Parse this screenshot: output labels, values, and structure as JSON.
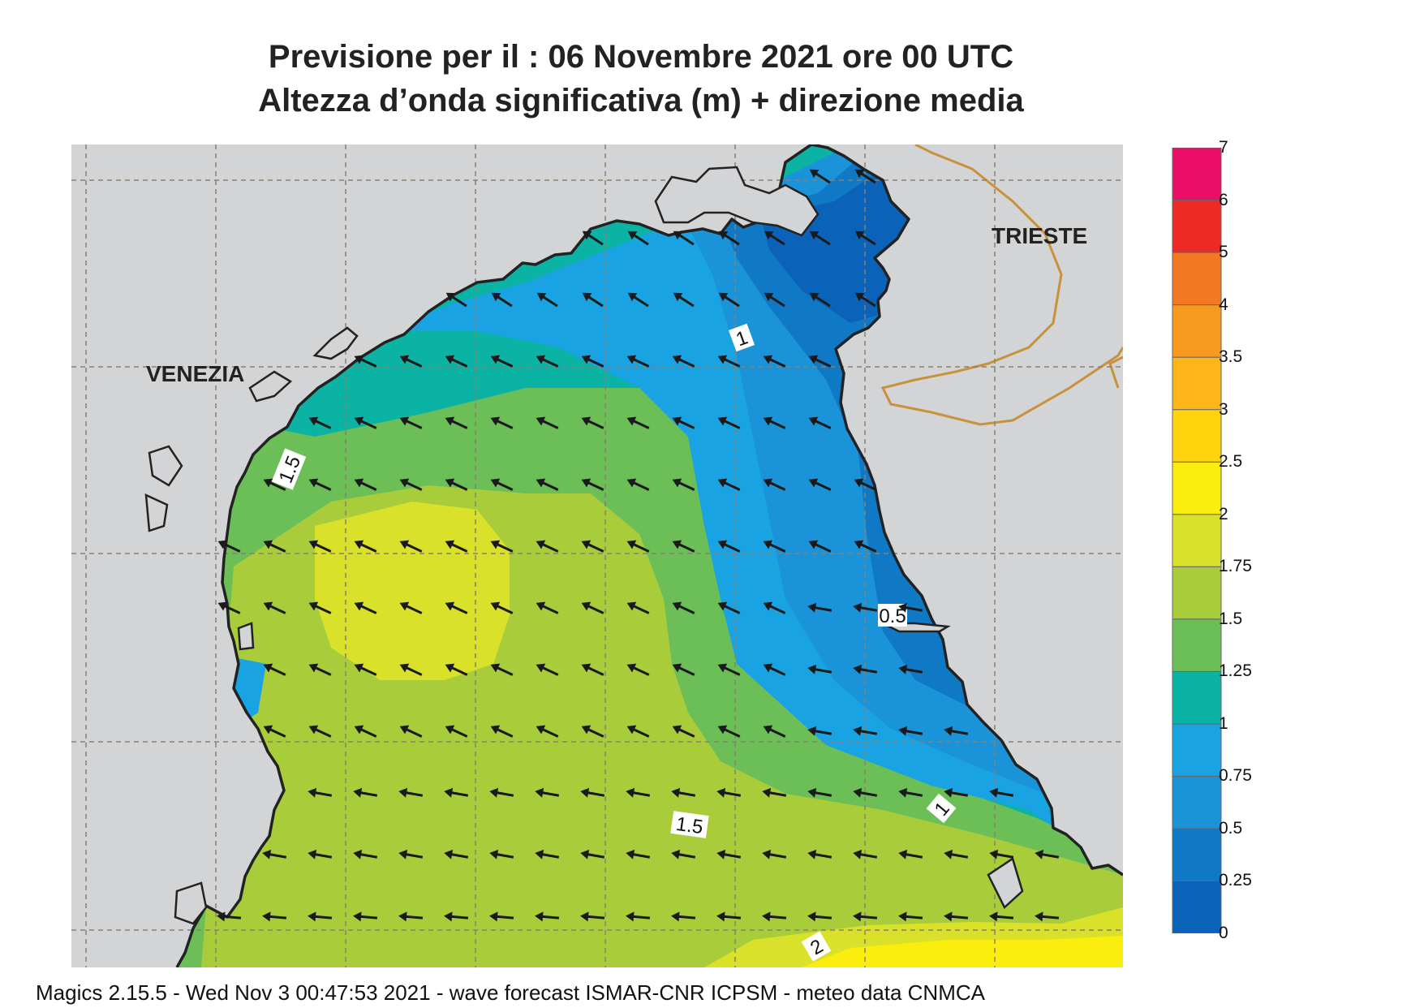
{
  "title": {
    "line1": "Previsione per il  :  06 Novembre  2021   ore 00 UTC",
    "line2": "Altezza d’onda significativa (m) + direzione media"
  },
  "cities": {
    "venezia": "VENEZIA",
    "trieste": "TRIESTE"
  },
  "contour_labels": {
    "c15_west": "1.5",
    "c1_north": "1",
    "c05_east": "0.5",
    "c1_south": "1",
    "c15_south": "1.5",
    "c2_south": "2"
  },
  "legend": {
    "ticks": [
      "0",
      "0.25",
      "0.5",
      "0.75",
      "1",
      "1.25",
      "1.5",
      "1.75",
      "2",
      "2.5",
      "3",
      "3.5",
      "4",
      "5",
      "6",
      "7"
    ],
    "colors": [
      "#0a63b8",
      "#1079c6",
      "#1a93d8",
      "#19a3e3",
      "#0bb3a5",
      "#6cbf57",
      "#a9cc3b",
      "#d9e12a",
      "#fbee0e",
      "#ffd40e",
      "#fdb619",
      "#f99a20",
      "#f27921",
      "#ee2a26",
      "#ea0e67"
    ]
  },
  "footer": "Magics 2.15.5 - Wed Nov  3 00:47:53 2021 - wave forecast  ISMAR-CNR  ICPSM - meteo data   CNMCA",
  "colors": {
    "land": "#d3d4d6",
    "coast": "#222222",
    "border": "#c9913a",
    "grid": "#8a8070",
    "arrow": "#1a1a1a"
  }
}
